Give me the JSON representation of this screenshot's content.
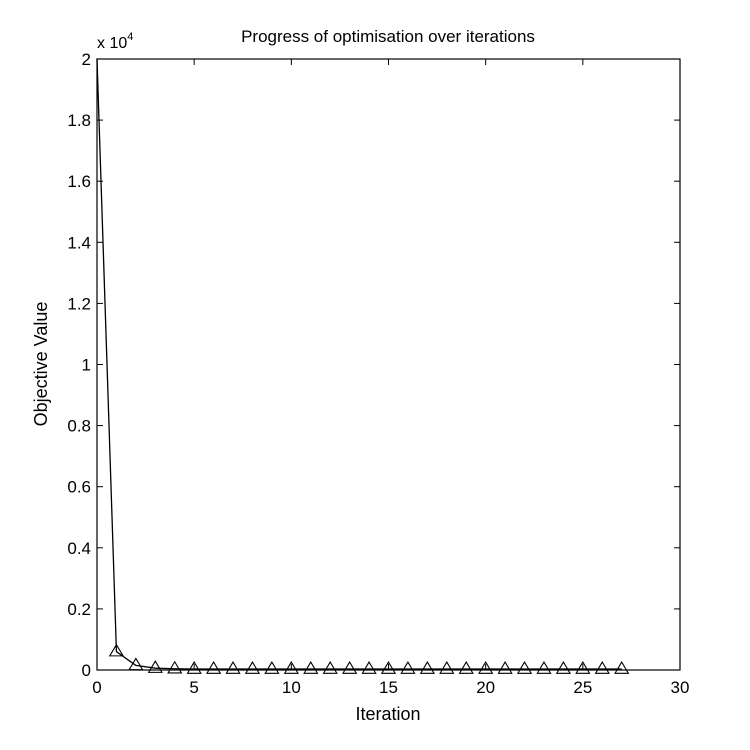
{
  "chart_data": {
    "type": "line",
    "title": "Progress of optimisation over iterations",
    "xlabel": "Iteration",
    "ylabel": "Objective Value",
    "y_exponent_label": "x 10",
    "y_exponent": "4",
    "xlim": [
      0,
      30
    ],
    "ylim": [
      0,
      2
    ],
    "xticks": [
      0,
      5,
      10,
      15,
      20,
      25,
      30
    ],
    "yticks": [
      0,
      0.2,
      0.4,
      0.6,
      0.8,
      1,
      1.2,
      1.4,
      1.6,
      1.8,
      2
    ],
    "xtick_labels": [
      "0",
      "5",
      "10",
      "15",
      "20",
      "25",
      "30"
    ],
    "ytick_labels": [
      "0",
      "0.2",
      "0.4",
      "0.6",
      "0.8",
      "1",
      "1.2",
      "1.4",
      "1.6",
      "1.8",
      "2"
    ],
    "grid": false,
    "marker": "triangle",
    "line_color": "#000000",
    "series": [
      {
        "x": [
          0,
          1,
          2,
          3,
          4,
          5,
          6,
          7,
          8,
          9,
          10,
          11,
          12,
          13,
          14,
          15,
          16,
          17,
          18,
          19,
          20,
          21,
          22,
          23,
          24,
          25,
          26,
          27
        ],
        "y": [
          2.0,
          0.06,
          0.015,
          0.006,
          0.004,
          0.003,
          0.003,
          0.003,
          0.003,
          0.003,
          0.003,
          0.003,
          0.003,
          0.003,
          0.003,
          0.003,
          0.003,
          0.003,
          0.003,
          0.003,
          0.003,
          0.003,
          0.003,
          0.003,
          0.003,
          0.003,
          0.003,
          0.003
        ]
      }
    ]
  }
}
